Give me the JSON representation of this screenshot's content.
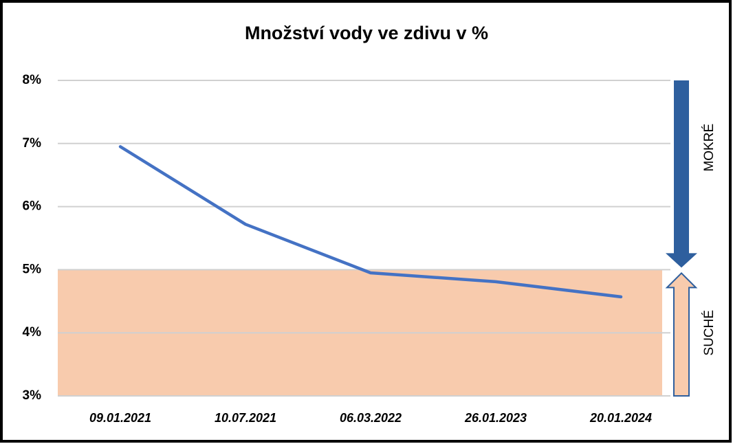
{
  "chart_data": {
    "type": "line",
    "title": "Množství vody ve zdivu v %",
    "categories": [
      "09.01.2021",
      "10.07.2021",
      "06.03.2022",
      "26.01.2023",
      "20.01.2024"
    ],
    "values": [
      6.95,
      5.72,
      4.95,
      4.81,
      4.57
    ],
    "color": "#4472c4",
    "ylim": [
      3,
      8
    ],
    "yticks": [
      {
        "value": 3,
        "label": "3%"
      },
      {
        "value": 4,
        "label": "4%"
      },
      {
        "value": 5,
        "label": "5%"
      },
      {
        "value": 6,
        "label": "6%"
      },
      {
        "value": 7,
        "label": "7%"
      },
      {
        "value": 8,
        "label": "8%"
      }
    ],
    "grid": true,
    "zones": [
      {
        "name": "MOKRÉ",
        "from": 5,
        "to": 8,
        "color": "#2e5f9e"
      },
      {
        "name": "SUCHÉ",
        "from": 3,
        "to": 5,
        "color": "#f8cbad"
      }
    ]
  }
}
